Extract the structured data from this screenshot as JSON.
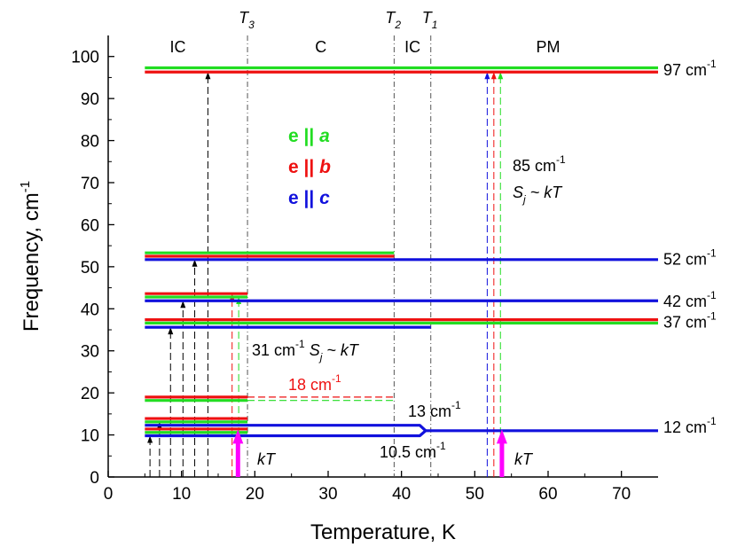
{
  "chart_data": {
    "type": "line",
    "xlabel": "Temperature, K",
    "ylabel": "Frequency, cm",
    "ylabel_sup": "-1",
    "xlim": [
      0,
      75
    ],
    "ylim": [
      0,
      105
    ],
    "xticks": [
      0,
      10,
      20,
      30,
      40,
      50,
      60,
      70
    ],
    "yticks": [
      0,
      10,
      20,
      30,
      40,
      50,
      60,
      70,
      80,
      90,
      100
    ],
    "grid": false,
    "colors": {
      "a": "#22dd22",
      "b": "#ee1111",
      "c": "#1111dd",
      "kT": "#ff00ff",
      "black": "#000000"
    },
    "transitions": [
      {
        "name": "T",
        "sub": "3",
        "x": 19
      },
      {
        "name": "T",
        "sub": "2",
        "x": 39
      },
      {
        "name": "T",
        "sub": "1",
        "x": 44
      }
    ],
    "phases": [
      {
        "label": "IC",
        "x": 9.5,
        "y": 101
      },
      {
        "label": "C",
        "x": 29,
        "y": 101
      },
      {
        "label": "IC",
        "x": 41.5,
        "y": 101
      },
      {
        "label": "PM",
        "x": 60,
        "y": 101
      }
    ],
    "legend": [
      {
        "text": "e || ",
        "axis": "a",
        "color": "a"
      },
      {
        "text": "e || ",
        "axis": "b",
        "color": "b"
      },
      {
        "text": "e || ",
        "axis": "c",
        "color": "c"
      }
    ],
    "legend_position": "center-left",
    "lines": [
      {
        "color": "a",
        "x": [
          5,
          75
        ],
        "y": [
          97.3,
          97.3
        ]
      },
      {
        "color": "b",
        "x": [
          5,
          75
        ],
        "y": [
          96.3,
          96.3
        ]
      },
      {
        "color": "a",
        "x": [
          5,
          39
        ],
        "y": [
          53.3,
          53.3
        ]
      },
      {
        "color": "b",
        "x": [
          5,
          39
        ],
        "y": [
          52.5,
          52.5
        ]
      },
      {
        "color": "c",
        "x": [
          5,
          75
        ],
        "y": [
          51.7,
          51.7
        ]
      },
      {
        "color": "b",
        "x": [
          5,
          19
        ],
        "y": [
          43.6,
          43.6
        ]
      },
      {
        "color": "a",
        "x": [
          5,
          19
        ],
        "y": [
          42.8,
          42.8
        ]
      },
      {
        "color": "c",
        "x": [
          5,
          75
        ],
        "y": [
          41.9,
          41.9
        ]
      },
      {
        "color": "b",
        "x": [
          5,
          75
        ],
        "y": [
          37.4,
          37.4
        ]
      },
      {
        "color": "a",
        "x": [
          5,
          75
        ],
        "y": [
          36.6,
          36.6
        ]
      },
      {
        "color": "c",
        "x": [
          5,
          44
        ],
        "y": [
          35.6,
          35.6
        ]
      },
      {
        "color": "b",
        "x": [
          5,
          19
        ],
        "y": [
          19.0,
          19.0
        ]
      },
      {
        "color": "a",
        "x": [
          5,
          19
        ],
        "y": [
          18.2,
          18.2
        ]
      },
      {
        "color": "b",
        "x": [
          5,
          19
        ],
        "y": [
          13.9,
          13.9
        ]
      },
      {
        "color": "a",
        "x": [
          5,
          19
        ],
        "y": [
          13.1,
          13.1
        ]
      },
      {
        "color": "c",
        "x": [
          5,
          42.5,
          43.3
        ],
        "y": [
          12.3,
          12.3,
          11.0
        ]
      },
      {
        "color": "b",
        "x": [
          5,
          19
        ],
        "y": [
          11.4,
          11.4
        ]
      },
      {
        "color": "a",
        "x": [
          5,
          19
        ],
        "y": [
          10.6,
          10.6
        ]
      },
      {
        "color": "c",
        "x": [
          5,
          42.5,
          43.3,
          75
        ],
        "y": [
          9.8,
          9.8,
          11.0,
          11.0
        ]
      }
    ],
    "dashed_lines": [
      {
        "color": "b",
        "x": [
          19,
          39
        ],
        "y": [
          19.0,
          19.0
        ]
      },
      {
        "color": "a",
        "x": [
          19,
          39
        ],
        "y": [
          18.2,
          18.2
        ]
      }
    ],
    "arrows": [
      {
        "color": "black",
        "x": 5.7,
        "y0": 0,
        "y1": 9.8
      },
      {
        "color": "black",
        "x": 7.0,
        "y0": 0,
        "y1": 13.1
      },
      {
        "color": "black",
        "x": 8.5,
        "y0": 0,
        "y1": 35.6
      },
      {
        "color": "black",
        "x": 10.2,
        "y0": 0,
        "y1": 41.9
      },
      {
        "color": "black",
        "x": 11.8,
        "y0": 0,
        "y1": 51.7
      },
      {
        "color": "black",
        "x": 13.6,
        "y0": 0,
        "y1": 96.3
      },
      {
        "color": "b",
        "x": 16.9,
        "y0": 0,
        "y1": 43.6
      },
      {
        "color": "a",
        "x": 17.8,
        "y0": 0,
        "y1": 42.8
      },
      {
        "color": "c",
        "x": 51.7,
        "y0": 0,
        "y1": 96.3
      },
      {
        "color": "b",
        "x": 52.6,
        "y0": 0,
        "y1": 96.3
      },
      {
        "color": "a",
        "x": 53.5,
        "y0": 0,
        "y1": 96.3
      }
    ],
    "kT_arrows": [
      {
        "x": 17.7,
        "y0": 0,
        "y1": 11.3
      },
      {
        "x": 53.7,
        "y0": 0,
        "y1": 11.3
      }
    ],
    "right_labels": [
      {
        "value": "97",
        "unit": " cm",
        "sup": "-1",
        "y": 97
      },
      {
        "value": "52",
        "unit": " cm",
        "sup": "-1",
        "y": 52
      },
      {
        "value": "42",
        "unit": " cm",
        "sup": "-1",
        "y": 42
      },
      {
        "value": "37",
        "unit": " cm",
        "sup": "-1",
        "y": 37
      },
      {
        "value": "12",
        "unit": " cm",
        "sup": "-1",
        "y": 12
      }
    ],
    "annotations": {
      "a85_line1": "85 cm",
      "a85_sup": "-1",
      "a85_S": "S",
      "a85_j": "j",
      "a85_kT": " ~ kT",
      "a31_text": "31 cm",
      "a31_sup": "-1",
      "a31_S": " S",
      "a31_j": "j",
      "a31_kT": " ~ kT",
      "a18_text": "18 cm",
      "a18_sup": "-1",
      "a13_text": "13 cm",
      "a13_sup": "-1",
      "a105_text": "10.5 cm",
      "a105_sup": "-1",
      "kT_left": "kT",
      "kT_right": "kT"
    }
  }
}
